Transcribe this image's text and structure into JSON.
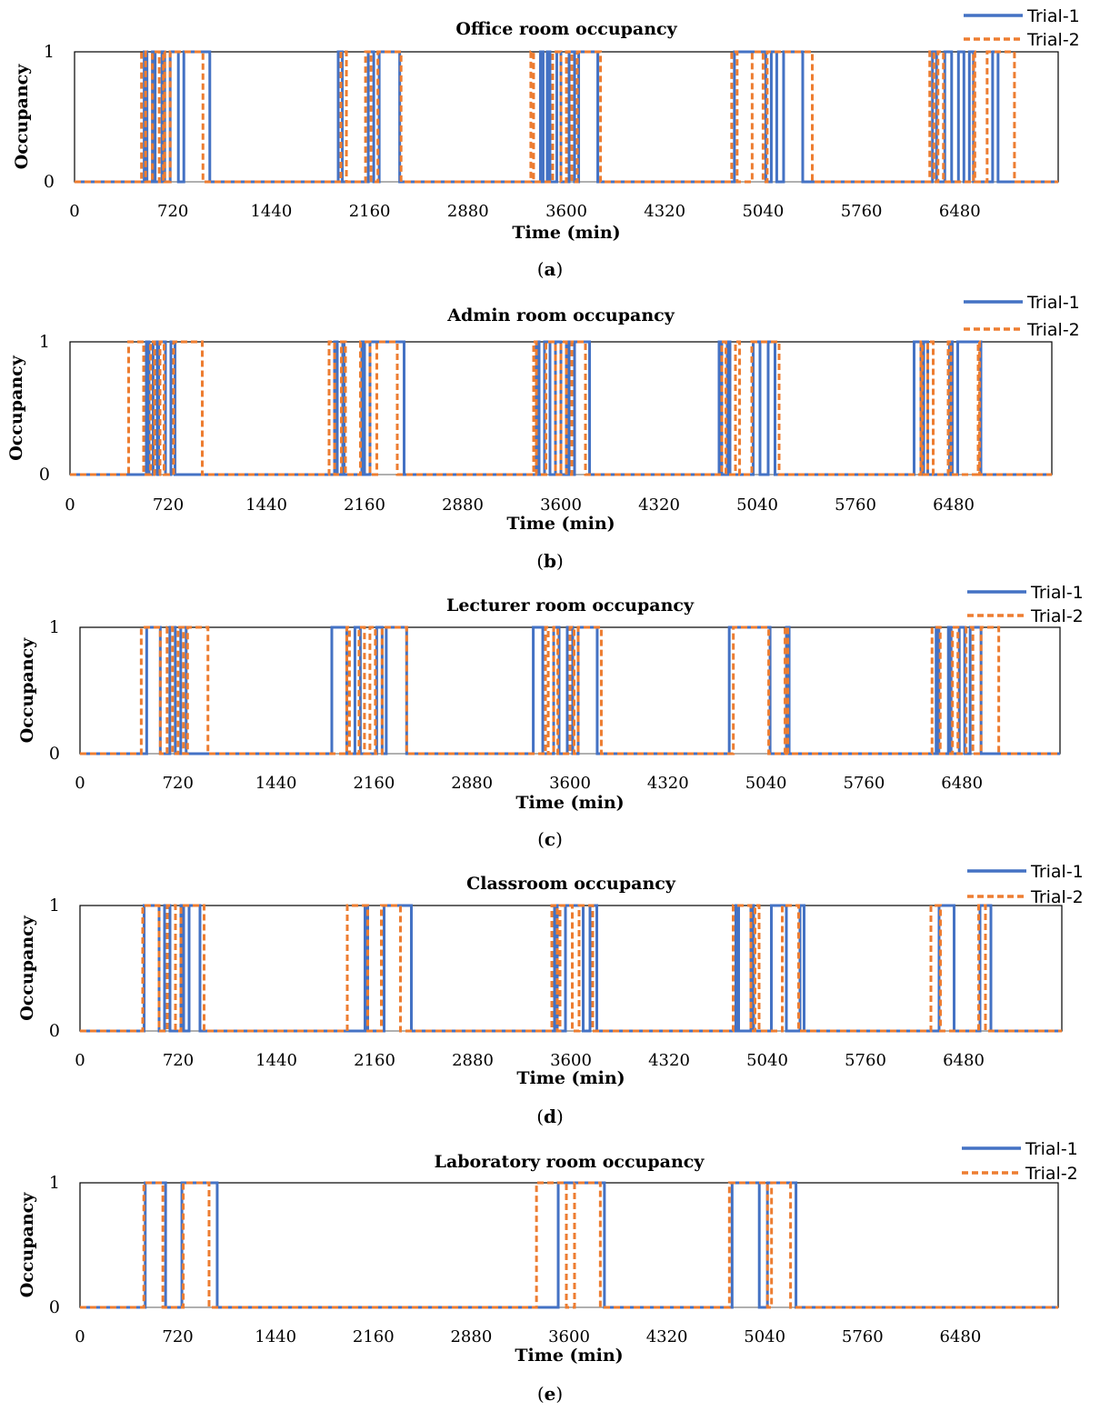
{
  "colors": {
    "trial1": "#4472C4",
    "trial2": "#ED7D31",
    "frame": "#000000",
    "baseline": "#A6A6A6",
    "text": "#000000"
  },
  "chart_data": [
    {
      "type": "line",
      "panel_label": "a",
      "title": "Office room occupancy",
      "xlabel": "Time (min)",
      "ylabel": "Occupancy",
      "xlim": [
        0,
        7200
      ],
      "ylim": [
        0,
        1
      ],
      "xticks": [
        "0",
        "720",
        "1440",
        "2160",
        "2880",
        "3600",
        "4320",
        "5040",
        "5760",
        "6480"
      ],
      "yticks": [
        "0",
        "1"
      ],
      "legend_position": "top-right",
      "series": [
        {
          "name": "Trial-1",
          "style": "solid",
          "intervals": [
            [
              510,
              530
            ],
            [
              570,
              590
            ],
            [
              640,
              660
            ],
            [
              700,
              760
            ],
            [
              800,
              990
            ],
            [
              1930,
              1960
            ],
            [
              2150,
              2190
            ],
            [
              2230,
              2380
            ],
            [
              3410,
              3430
            ],
            [
              3460,
              3480
            ],
            [
              3530,
              3560
            ],
            [
              3620,
              3660
            ],
            [
              3690,
              3830
            ],
            [
              4830,
              5060
            ],
            [
              5100,
              5140
            ],
            [
              5190,
              5330
            ],
            [
              6280,
              6310
            ],
            [
              6370,
              6420
            ],
            [
              6470,
              6510
            ],
            [
              6550,
              6580
            ],
            [
              6720,
              6760
            ]
          ]
        },
        {
          "name": "Trial-2",
          "style": "dashed",
          "intervals": [
            [
              490,
              520
            ],
            [
              570,
              620
            ],
            [
              650,
              660
            ],
            [
              700,
              940
            ],
            [
              1950,
              1990
            ],
            [
              2130,
              2170
            ],
            [
              2220,
              2390
            ],
            [
              3340,
              3360
            ],
            [
              3500,
              3560
            ],
            [
              3600,
              3640
            ],
            [
              3680,
              3850
            ],
            [
              4810,
              4850
            ],
            [
              4960,
              5040
            ],
            [
              5070,
              5400
            ],
            [
              6260,
              6290
            ],
            [
              6320,
              6360
            ],
            [
              6580,
              6590
            ],
            [
              6680,
              6880
            ]
          ]
        }
      ]
    },
    {
      "type": "line",
      "panel_label": "b",
      "title": "Admin room occupancy",
      "xlabel": "Time (min)",
      "ylabel": "Occupancy",
      "xlim": [
        0,
        7200
      ],
      "ylim": [
        0,
        1
      ],
      "xticks": [
        "0",
        "720",
        "1440",
        "2160",
        "2880",
        "3600",
        "4320",
        "5040",
        "5760",
        "6480"
      ],
      "yticks": [
        "0",
        "1"
      ],
      "legend_position": "top-right",
      "series": [
        {
          "name": "Trial-1",
          "style": "solid",
          "intervals": [
            [
              560,
              580
            ],
            [
              610,
              640
            ],
            [
              650,
              700
            ],
            [
              740,
              770
            ],
            [
              1940,
              1960
            ],
            [
              2000,
              2010
            ],
            [
              2140,
              2160
            ],
            [
              2200,
              2450
            ],
            [
              3420,
              3440
            ],
            [
              3480,
              3520
            ],
            [
              3560,
              3600
            ],
            [
              3640,
              3660
            ],
            [
              3700,
              3810
            ],
            [
              4760,
              4780
            ],
            [
              4820,
              4840
            ],
            [
              5010,
              5060
            ],
            [
              5120,
              5170
            ],
            [
              6190,
              6240
            ],
            [
              6260,
              6290
            ],
            [
              6450,
              6470
            ],
            [
              6510,
              6680
            ]
          ]
        },
        {
          "name": "Trial-2",
          "style": "dashed",
          "intervals": [
            [
              430,
              540
            ],
            [
              590,
              620
            ],
            [
              660,
              690
            ],
            [
              760,
              970
            ],
            [
              1900,
              1940
            ],
            [
              1990,
              2020
            ],
            [
              2130,
              2200
            ],
            [
              2250,
              2400
            ],
            [
              3400,
              3420
            ],
            [
              3490,
              3560
            ],
            [
              3600,
              3640
            ],
            [
              3680,
              3780
            ],
            [
              4780,
              4810
            ],
            [
              4880,
              4910
            ],
            [
              5000,
              5200
            ],
            [
              6240,
              6250
            ],
            [
              6290,
              6330
            ],
            [
              6440,
              6460
            ],
            [
              6660,
              6670
            ]
          ]
        }
      ]
    },
    {
      "type": "line",
      "panel_label": "c",
      "title": "Lecturer room occupancy",
      "xlabel": "Time (min)",
      "ylabel": "Occupancy",
      "xlim": [
        0,
        7200
      ],
      "ylim": [
        0,
        1
      ],
      "xticks": [
        "0",
        "720",
        "1440",
        "2160",
        "2880",
        "3600",
        "4320",
        "5040",
        "5760",
        "6480"
      ],
      "yticks": [
        "0",
        "1"
      ],
      "legend_position": "top-right",
      "series": [
        {
          "name": "Trial-1",
          "style": "solid",
          "intervals": [
            [
              490,
              590
            ],
            [
              660,
              700
            ],
            [
              740,
              780
            ],
            [
              1850,
              1960
            ],
            [
              2020,
              2060
            ],
            [
              2180,
              2220
            ],
            [
              2250,
              2400
            ],
            [
              3330,
              3400
            ],
            [
              3480,
              3520
            ],
            [
              3580,
              3620
            ],
            [
              3660,
              3800
            ],
            [
              4770,
              5070
            ],
            [
              5190,
              5210
            ],
            [
              6290,
              6310
            ],
            [
              6380,
              6400
            ],
            [
              6460,
              6500
            ],
            [
              6540,
              6620
            ]
          ]
        },
        {
          "name": "Trial-2",
          "style": "dashed",
          "intervals": [
            [
              450,
              590
            ],
            [
              640,
              680
            ],
            [
              720,
              760
            ],
            [
              790,
              940
            ],
            [
              1960,
              1980
            ],
            [
              2050,
              2090
            ],
            [
              2130,
              2170
            ],
            [
              2220,
              2400
            ],
            [
              3420,
              3440
            ],
            [
              3480,
              3510
            ],
            [
              3600,
              3630
            ],
            [
              3660,
              3830
            ],
            [
              4800,
              5060
            ],
            [
              5180,
              5200
            ],
            [
              6260,
              6320
            ],
            [
              6410,
              6450
            ],
            [
              6510,
              6560
            ],
            [
              6620,
              6750
            ]
          ]
        }
      ]
    },
    {
      "type": "line",
      "panel_label": "d",
      "title": "Classroom occupancy",
      "xlabel": "Time (min)",
      "ylabel": "Occupancy",
      "xlim": [
        0,
        7200
      ],
      "ylim": [
        0,
        1
      ],
      "xticks": [
        "0",
        "720",
        "1440",
        "2160",
        "2880",
        "3600",
        "4320",
        "5040",
        "5760",
        "6480"
      ],
      "yticks": [
        "0",
        "1"
      ],
      "legend_position": "top-right",
      "series": [
        {
          "name": "Trial-1",
          "style": "solid",
          "intervals": [
            [
              470,
              580
            ],
            [
              620,
              660
            ],
            [
              740,
              760
            ],
            [
              800,
              880
            ],
            [
              2090,
              2110
            ],
            [
              2230,
              2430
            ],
            [
              3480,
              3500
            ],
            [
              3560,
              3690
            ],
            [
              3740,
              3790
            ],
            [
              4810,
              4830
            ],
            [
              4920,
              4940
            ],
            [
              5070,
              5180
            ],
            [
              5280,
              5310
            ],
            [
              6300,
              6410
            ],
            [
              6600,
              6680
            ]
          ]
        },
        {
          "name": "Trial-2",
          "style": "dashed",
          "intervals": [
            [
              460,
              580
            ],
            [
              640,
              700
            ],
            [
              740,
              910
            ],
            [
              1960,
              2110
            ],
            [
              2210,
              2350
            ],
            [
              3460,
              3500
            ],
            [
              3520,
              3610
            ],
            [
              3660,
              3760
            ],
            [
              4790,
              4920
            ],
            [
              4950,
              4980
            ],
            [
              5150,
              5270
            ],
            [
              6240,
              6310
            ],
            [
              6590,
              6640
            ]
          ]
        }
      ]
    },
    {
      "type": "line",
      "panel_label": "e",
      "title": "Laboratory room occupancy",
      "xlabel": "Time (min)",
      "ylabel": "Occupancy",
      "xlim": [
        0,
        7200
      ],
      "ylim": [
        0,
        1
      ],
      "xticks": [
        "0",
        "720",
        "1440",
        "2160",
        "2880",
        "3600",
        "4320",
        "5040",
        "5760",
        "6480"
      ],
      "yticks": [
        "0",
        "1"
      ],
      "legend_position": "top-right",
      "series": [
        {
          "name": "Trial-1",
          "style": "solid",
          "intervals": [
            [
              480,
              630
            ],
            [
              750,
              1010
            ],
            [
              3520,
              3860
            ],
            [
              4800,
              5000
            ],
            [
              5060,
              5270
            ]
          ]
        },
        {
          "name": "Trial-2",
          "style": "dashed",
          "intervals": [
            [
              470,
              610
            ],
            [
              760,
              950
            ],
            [
              3360,
              3580
            ],
            [
              3640,
              3830
            ],
            [
              4780,
              5060
            ],
            [
              5090,
              5230
            ]
          ]
        }
      ]
    }
  ]
}
